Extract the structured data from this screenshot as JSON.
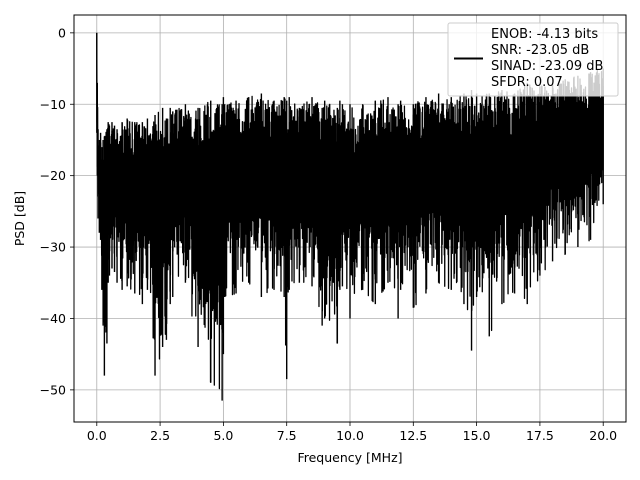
{
  "chart_data": {
    "type": "line",
    "title": "",
    "xlabel": "Frequency [MHz]",
    "ylabel": "PSD [dB]",
    "xlim": [
      -0.9,
      20.9
    ],
    "ylim": [
      -54.5,
      2.5
    ],
    "x_ticks": [
      0.0,
      2.5,
      5.0,
      7.5,
      10.0,
      12.5,
      15.0,
      17.5,
      20.0
    ],
    "x_tick_labels": [
      "0.0",
      "2.5",
      "5.0",
      "7.5",
      "10.0",
      "12.5",
      "15.0",
      "17.5",
      "20.0"
    ],
    "y_ticks": [
      0,
      -10,
      -20,
      -30,
      -40,
      -50
    ],
    "y_tick_labels": [
      "0",
      "−10",
      "−20",
      "−30",
      "−40",
      "−50"
    ],
    "grid": true,
    "legend_position": "top-right",
    "series_color": "#000000",
    "legend_lines": [
      "ENOB: -4.13 bits",
      "SNR: -23.05 dB",
      "SINAD: -23.09 dB",
      "SFDR: 0.07"
    ],
    "x": [
      0.0,
      0.02,
      0.05,
      0.1,
      0.15,
      0.2,
      0.25,
      0.3,
      0.4,
      0.45,
      0.5,
      0.6,
      0.7,
      0.8,
      1.0,
      1.2,
      1.5,
      1.8,
      2.0,
      2.3,
      2.6,
      2.75,
      2.9,
      3.0,
      3.5,
      4.0,
      4.5,
      4.95,
      5.0,
      5.05,
      5.5,
      6.0,
      6.5,
      7.0,
      7.4,
      7.5,
      7.6,
      8.0,
      8.5,
      8.9,
      9.0,
      9.5,
      9.6,
      9.7,
      10.0,
      10.5,
      11.0,
      11.5,
      11.9,
      12.0,
      12.5,
      13.0,
      13.5,
      14.0,
      14.5,
      14.8,
      15.0,
      15.5,
      16.0,
      16.5,
      17.0,
      17.5,
      18.0,
      18.5,
      19.0,
      19.5,
      20.0
    ],
    "y_upper": [
      0.0,
      -7.0,
      -13.5,
      -15.0,
      -14.0,
      -16.0,
      -15.0,
      -14.5,
      -13.5,
      -12.5,
      -13.0,
      -12.5,
      -13.0,
      -13.5,
      -12.5,
      -12.0,
      -12.5,
      -12.5,
      -12.0,
      -11.5,
      -10.5,
      -12.0,
      -10.5,
      -11.0,
      -10.0,
      -10.5,
      -9.5,
      -10.0,
      -9.0,
      -10.0,
      -9.5,
      -9.0,
      -8.5,
      -9.5,
      -9.0,
      -9.5,
      -9.0,
      -10.5,
      -9.0,
      -10.5,
      -9.5,
      -10.5,
      -9.5,
      -10.0,
      -10.0,
      -10.0,
      -9.5,
      -9.0,
      -10.0,
      -9.5,
      -10.0,
      -9.0,
      -8.5,
      -9.0,
      -8.5,
      -8.0,
      -8.5,
      -8.5,
      -8.0,
      -8.5,
      -7.0,
      -7.5,
      -7.0,
      -6.5,
      -6.0,
      -5.5,
      -5.0
    ],
    "y_lower": [
      -14.0,
      -20.0,
      -26.0,
      -28.0,
      -29.0,
      -36.0,
      -41.0,
      -48.0,
      -43.5,
      -35.0,
      -34.0,
      -33.0,
      -33.5,
      -35.0,
      -36.0,
      -35.5,
      -36.5,
      -38.0,
      -36.0,
      -48.0,
      -44.0,
      -43.0,
      -38.0,
      -37.0,
      -35.0,
      -44.0,
      -49.0,
      -51.5,
      -45.0,
      -37.0,
      -36.5,
      -35.0,
      -37.0,
      -36.0,
      -37.0,
      -48.5,
      -36.0,
      -35.0,
      -35.5,
      -41.0,
      -40.0,
      -43.5,
      -36.0,
      -35.5,
      -40.0,
      -36.0,
      -38.0,
      -35.0,
      -40.0,
      -36.0,
      -38.5,
      -36.5,
      -35.0,
      -36.0,
      -38.0,
      -44.5,
      -37.0,
      -42.5,
      -38.0,
      -36.5,
      -38.0,
      -34.0,
      -32.0,
      -31.0,
      -30.0,
      -29.0,
      -24.0
    ]
  }
}
